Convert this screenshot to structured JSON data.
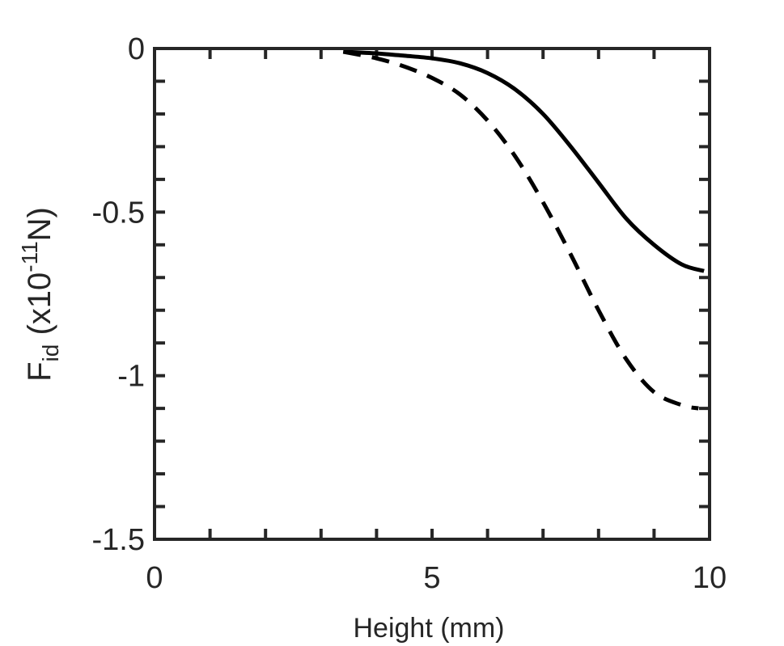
{
  "chart_data": {
    "type": "line",
    "xlabel": "Height (mm)",
    "ylabel": {
      "prefix": "F",
      "subscript": "id",
      "middle": " (x10",
      "superscript": "-11",
      "suffix": "N)"
    },
    "xlim": [
      0,
      10
    ],
    "ylim": [
      -1.5,
      0
    ],
    "xticks": [
      0,
      5,
      10
    ],
    "xtick_labels": [
      "0",
      "5",
      "10"
    ],
    "yticks": [
      0,
      -0.5,
      -1,
      -1.5
    ],
    "ytick_labels": [
      "0",
      "-0.5",
      "-1",
      "-1.5"
    ],
    "minor_x_step": 1,
    "minor_y_step": 0.1,
    "grid": false,
    "series": [
      {
        "style": "solid",
        "color": "#000000",
        "x": [
          3.4,
          4.0,
          4.5,
          5.0,
          5.5,
          6.0,
          6.5,
          7.0,
          7.5,
          8.0,
          8.5,
          9.0,
          9.5,
          9.9
        ],
        "y": [
          -0.01,
          -0.015,
          -0.022,
          -0.03,
          -0.045,
          -0.075,
          -0.125,
          -0.2,
          -0.3,
          -0.41,
          -0.52,
          -0.6,
          -0.66,
          -0.68
        ]
      },
      {
        "style": "dashed",
        "color": "#000000",
        "x": [
          3.4,
          4.0,
          4.5,
          5.0,
          5.5,
          6.0,
          6.5,
          7.0,
          7.5,
          8.0,
          8.5,
          9.0,
          9.5,
          9.8
        ],
        "y": [
          -0.01,
          -0.03,
          -0.055,
          -0.09,
          -0.14,
          -0.22,
          -0.33,
          -0.47,
          -0.63,
          -0.8,
          -0.95,
          -1.05,
          -1.09,
          -1.1
        ]
      }
    ]
  }
}
